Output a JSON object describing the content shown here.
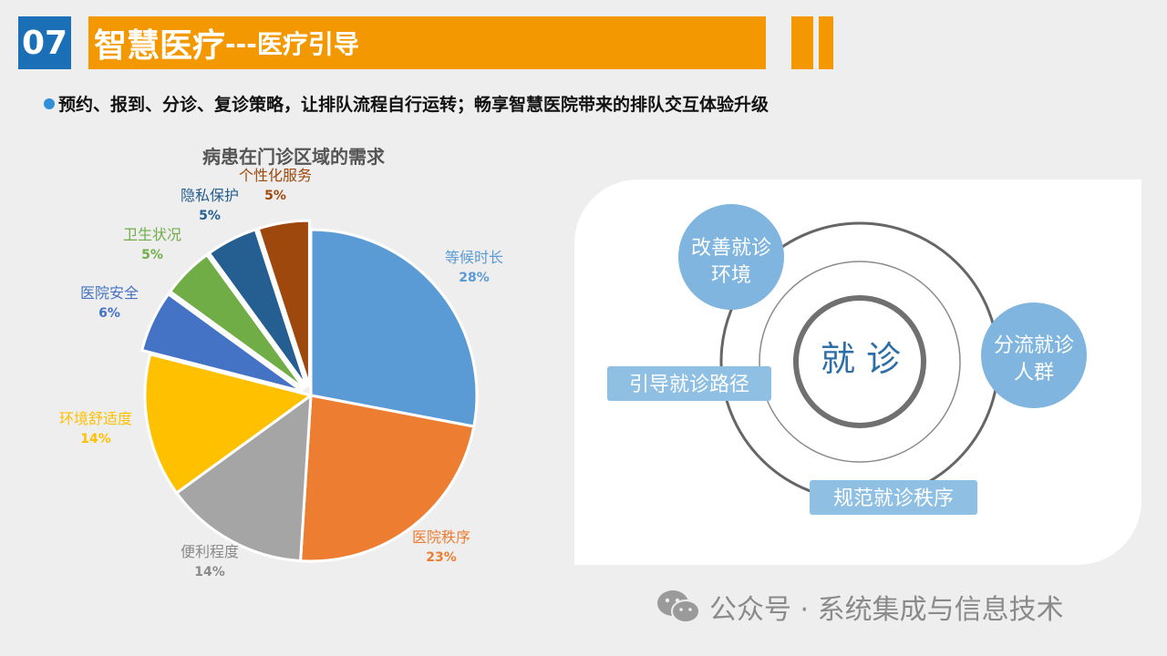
{
  "header": {
    "section_number": "07",
    "title_main": "智慧医疗",
    "title_sub": "---医疗引导"
  },
  "bullet": "预约、报到、分诊、复诊策略，让排队流程自行运转；畅享智慧医院带来的排队交互体验升级",
  "chart_data": {
    "type": "pie",
    "title": "病患在门诊区域的需求",
    "slices": [
      {
        "label": "等候时长",
        "value": 28,
        "value_label": "28%",
        "color": "#5b9bd5"
      },
      {
        "label": "医院秩序",
        "value": 23,
        "value_label": "23%",
        "color": "#ed7d31"
      },
      {
        "label": "便利程度",
        "value": 14,
        "value_label": "14%",
        "color": "#a5a5a5"
      },
      {
        "label": "环境舒适度",
        "value": 14,
        "value_label": "14%",
        "color": "#ffc000"
      },
      {
        "label": "医院安全",
        "value": 6,
        "value_label": "6%",
        "color": "#4472c4"
      },
      {
        "label": "卫生状况",
        "value": 5,
        "value_label": "5%",
        "color": "#70ad47"
      },
      {
        "label": "隐私保护",
        "value": 5,
        "value_label": "5%",
        "color": "#255e91"
      },
      {
        "label": "个性化服务",
        "value": 5,
        "value_label": "5%",
        "color": "#9e480e"
      }
    ]
  },
  "diagram": {
    "center": "就 诊",
    "nodes": {
      "env": "改善就诊环境",
      "flow": "分流就诊人群",
      "path": "引导就诊路径",
      "order": "规范就诊秩序"
    }
  },
  "watermark": "公众号 · 系统集成与信息技术"
}
